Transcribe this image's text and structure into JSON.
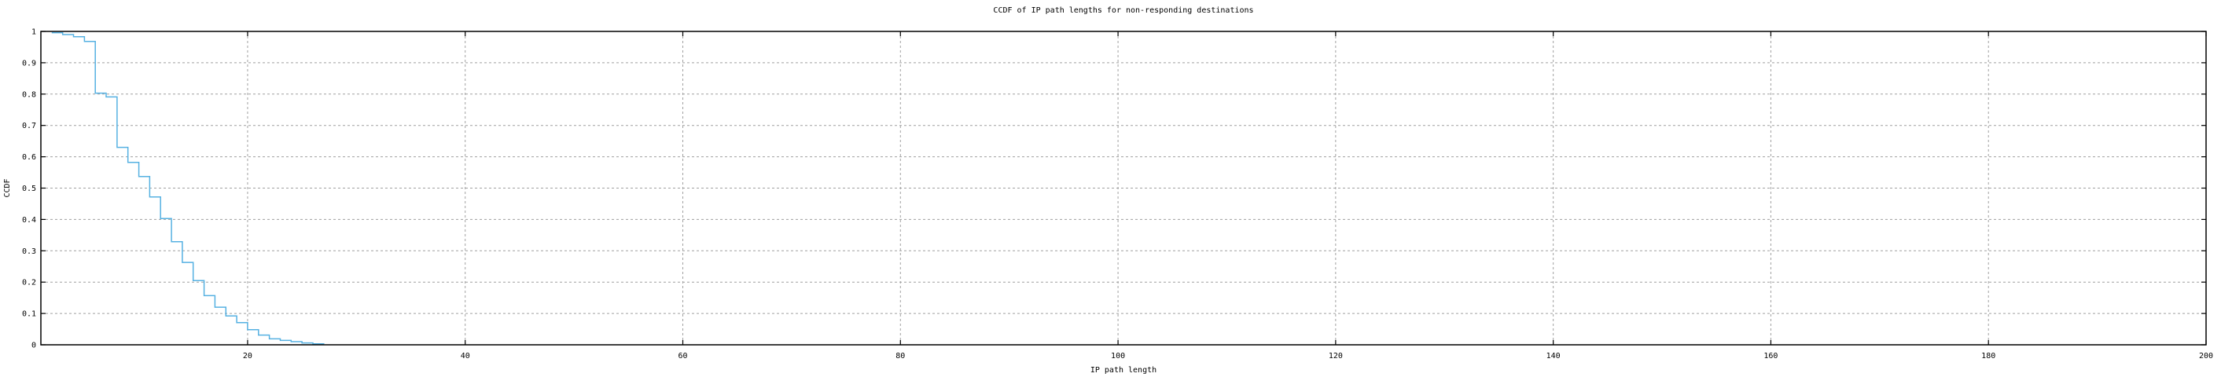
{
  "chart_data": {
    "type": "line",
    "subtype": "ccdf-step-curve",
    "title": "CCDF of IP path lengths for non-responding destinations",
    "xlabel": "IP path length",
    "ylabel": "CCDF",
    "xlim": [
      1,
      200
    ],
    "ylim": [
      0,
      1
    ],
    "grid": true,
    "legend": "none",
    "xticks": [
      {
        "v": 20,
        "label": "20"
      },
      {
        "v": 40,
        "label": "40"
      },
      {
        "v": 60,
        "label": "60"
      },
      {
        "v": 80,
        "label": "80"
      },
      {
        "v": 100,
        "label": "100"
      },
      {
        "v": 120,
        "label": "120"
      },
      {
        "v": 140,
        "label": "140"
      },
      {
        "v": 160,
        "label": "160"
      },
      {
        "v": 180,
        "label": "180"
      },
      {
        "v": 200,
        "label": "200"
      }
    ],
    "yticks": [
      {
        "v": 0,
        "label": "0"
      },
      {
        "v": 0.1,
        "label": "0.1"
      },
      {
        "v": 0.2,
        "label": "0.2"
      },
      {
        "v": 0.3,
        "label": "0.3"
      },
      {
        "v": 0.4,
        "label": "0.4"
      },
      {
        "v": 0.5,
        "label": "0.5"
      },
      {
        "v": 0.6,
        "label": "0.6"
      },
      {
        "v": 0.7,
        "label": "0.7"
      },
      {
        "v": 0.8,
        "label": "0.8"
      },
      {
        "v": 0.9,
        "label": "0.9"
      },
      {
        "v": 1,
        "label": "1"
      }
    ],
    "series": [
      {
        "name": "CCDF of IP path length",
        "color": "#56b1e2",
        "points": [
          [
            2,
            0.996
          ],
          [
            3,
            0.99
          ],
          [
            4,
            0.983
          ],
          [
            5,
            0.968
          ],
          [
            6,
            0.803
          ],
          [
            7,
            0.791
          ],
          [
            8,
            0.63
          ],
          [
            9,
            0.582
          ],
          [
            10,
            0.537
          ],
          [
            11,
            0.472
          ],
          [
            12,
            0.403
          ],
          [
            13,
            0.329
          ],
          [
            14,
            0.263
          ],
          [
            15,
            0.205
          ],
          [
            16,
            0.157
          ],
          [
            17,
            0.12
          ],
          [
            18,
            0.092
          ],
          [
            19,
            0.071
          ],
          [
            20,
            0.048
          ],
          [
            21,
            0.031
          ],
          [
            22,
            0.019
          ],
          [
            23,
            0.014
          ],
          [
            24,
            0.01
          ],
          [
            25,
            0.006
          ],
          [
            26,
            0.003
          ],
          [
            27,
            0.002
          ]
        ]
      }
    ]
  },
  "colors": {
    "background": "#ffffff",
    "grid": "#a0a0a0",
    "axis": "#000000",
    "text": "#000000"
  }
}
